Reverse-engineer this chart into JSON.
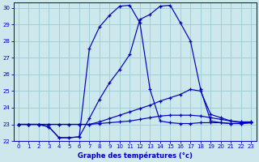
{
  "title": "Graphe des températures (°c)",
  "bg_color": "#cce8ec",
  "grid_color": "#99ccd4",
  "line_color": "#0000bb",
  "xlim": [
    0,
    23
  ],
  "ylim": [
    22,
    30
  ],
  "xticks": [
    0,
    1,
    2,
    3,
    4,
    5,
    6,
    7,
    8,
    9,
    10,
    11,
    12,
    13,
    14,
    15,
    16,
    17,
    18,
    19,
    20,
    21,
    22,
    23
  ],
  "yticks": [
    22,
    23,
    24,
    25,
    26,
    27,
    28,
    29,
    30
  ],
  "line1_x": [
    0,
    1,
    2,
    3,
    4,
    5,
    6,
    7,
    8,
    9,
    10,
    11,
    12,
    13,
    14,
    15,
    16,
    17,
    18,
    19,
    20,
    21,
    22,
    23
  ],
  "line1_y": [
    23.0,
    23.0,
    23.0,
    22.85,
    22.2,
    22.2,
    22.25,
    23.35,
    24.5,
    25.5,
    26.3,
    27.2,
    29.3,
    29.6,
    30.1,
    30.15,
    29.1,
    28.0,
    25.1,
    23.2,
    23.1,
    23.05,
    23.05,
    23.1
  ],
  "line2_x": [
    0,
    1,
    2,
    3,
    4,
    5,
    6,
    7,
    8,
    9,
    10,
    11,
    12,
    13,
    14,
    15,
    16,
    17,
    18,
    19,
    20,
    21,
    22,
    23
  ],
  "line2_y": [
    23.0,
    23.0,
    23.0,
    22.85,
    22.2,
    22.2,
    22.25,
    27.55,
    28.85,
    29.55,
    30.1,
    30.15,
    29.1,
    25.1,
    23.2,
    23.1,
    23.05,
    23.05,
    23.1,
    23.1,
    23.1,
    23.05,
    23.05,
    23.1
  ],
  "line3_x": [
    0,
    1,
    2,
    3,
    4,
    5,
    6,
    7,
    8,
    9,
    10,
    11,
    12,
    13,
    14,
    15,
    16,
    17,
    18,
    19,
    20,
    21,
    22,
    23
  ],
  "line3_y": [
    23.0,
    23.0,
    23.0,
    23.0,
    23.0,
    23.0,
    23.0,
    23.0,
    23.15,
    23.35,
    23.55,
    23.75,
    23.95,
    24.15,
    24.4,
    24.6,
    24.8,
    25.1,
    25.0,
    23.6,
    23.4,
    23.2,
    23.1,
    23.1
  ],
  "line4_x": [
    0,
    1,
    2,
    3,
    4,
    5,
    6,
    7,
    8,
    9,
    10,
    11,
    12,
    13,
    14,
    15,
    16,
    17,
    18,
    19,
    20,
    21,
    22,
    23
  ],
  "line4_y": [
    23.0,
    23.0,
    23.0,
    23.0,
    23.0,
    23.0,
    23.0,
    23.0,
    23.05,
    23.1,
    23.15,
    23.2,
    23.3,
    23.4,
    23.5,
    23.55,
    23.55,
    23.55,
    23.5,
    23.4,
    23.3,
    23.2,
    23.15,
    23.15
  ]
}
